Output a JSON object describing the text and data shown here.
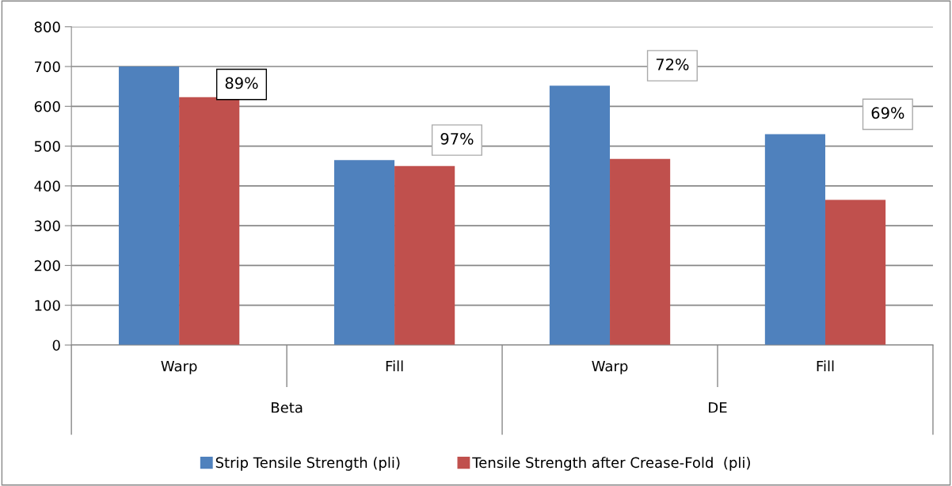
{
  "chart_data": {
    "type": "bar",
    "categories": [
      "Warp",
      "Fill",
      "Warp",
      "Fill"
    ],
    "series": [
      {
        "name": "Strip Tensile Strength (pli)",
        "color": "#4f81bd",
        "values": [
          700,
          465,
          652,
          530
        ]
      },
      {
        "name": "Tensile Strength after Crease-Fold  (pli)",
        "color": "#c0504d",
        "values": [
          623,
          450,
          468,
          365
        ]
      }
    ],
    "annotations": [
      "89%",
      "97%",
      "72%",
      "69%",
      "Beta",
      "DE"
    ],
    "ylim": [
      0,
      800
    ],
    "yticks": [
      0,
      100,
      200,
      300,
      400,
      500,
      600,
      700,
      800
    ],
    "grid": "y",
    "legend": "bottom"
  }
}
